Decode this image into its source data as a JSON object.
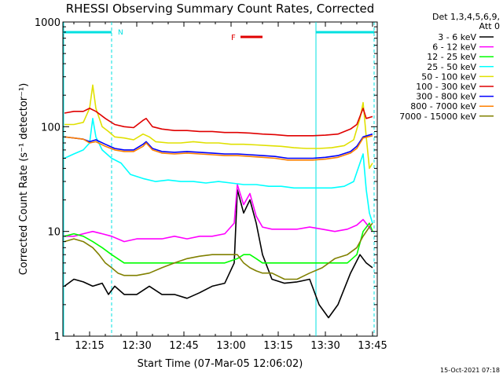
{
  "chart_data": {
    "type": "line",
    "title": "RHESSI Observing Summary Count Rates, Corrected",
    "xlabel": "Start Time (07-Mar-05 12:06:02)",
    "ylabel": "Corrected Count Rate (s⁻¹ detector⁻¹)",
    "yscale": "log",
    "ylim": [
      1,
      1000
    ],
    "xlim_minutes": [
      726.5,
      826.5
    ],
    "x_ticks": [
      "12:15",
      "12:30",
      "12:45",
      "13:00",
      "13:15",
      "13:30",
      "13:45"
    ],
    "x_tick_minutes": [
      735,
      750,
      765,
      780,
      795,
      810,
      825
    ],
    "y_ticks": [
      "1",
      "10",
      "100",
      "1000"
    ],
    "y_tick_values": [
      1,
      10,
      100,
      1000
    ],
    "legend_position": "right",
    "legend_header": [
      "Det 1,3,4,5,6,9,",
      "Att 0"
    ],
    "flare_flag": {
      "label": "F",
      "color": "#e00000",
      "start_min": 783,
      "end_min": 790
    },
    "night_flag": {
      "label": "N",
      "color": "#00e0e0"
    },
    "night_intervals": [
      [
        726.5,
        742
      ],
      [
        807,
        825.5
      ]
    ],
    "boundaries_min": [
      742,
      807,
      825.5
    ],
    "timestamp": "15-Oct-2021 07:18",
    "series": [
      {
        "name": "3 - 6 keV",
        "color": "#000000",
        "points": [
          [
            727,
            3
          ],
          [
            730,
            3.5
          ],
          [
            733,
            3.3
          ],
          [
            736,
            3
          ],
          [
            739,
            3.2
          ],
          [
            741,
            2.5
          ],
          [
            743,
            3
          ],
          [
            746,
            2.5
          ],
          [
            750,
            2.5
          ],
          [
            754,
            3
          ],
          [
            758,
            2.5
          ],
          [
            762,
            2.5
          ],
          [
            766,
            2.3
          ],
          [
            770,
            2.6
          ],
          [
            774,
            3
          ],
          [
            778,
            3.2
          ],
          [
            781,
            5
          ],
          [
            782,
            25
          ],
          [
            784,
            15
          ],
          [
            786,
            20
          ],
          [
            788,
            12
          ],
          [
            790,
            6
          ],
          [
            793,
            3.5
          ],
          [
            797,
            3.2
          ],
          [
            801,
            3.3
          ],
          [
            805,
            3.5
          ],
          [
            808,
            2
          ],
          [
            811,
            1.5
          ],
          [
            814,
            2
          ],
          [
            818,
            4
          ],
          [
            821,
            6
          ],
          [
            823,
            5
          ],
          [
            825,
            4.5
          ]
        ]
      },
      {
        "name": "6 - 12 keV",
        "color": "#ff00ff",
        "points": [
          [
            727,
            9
          ],
          [
            730,
            9
          ],
          [
            733,
            9.5
          ],
          [
            736,
            10
          ],
          [
            739,
            9.5
          ],
          [
            742,
            9
          ],
          [
            746,
            8
          ],
          [
            750,
            8.5
          ],
          [
            754,
            8.5
          ],
          [
            758,
            8.5
          ],
          [
            762,
            9
          ],
          [
            766,
            8.5
          ],
          [
            770,
            9
          ],
          [
            774,
            9
          ],
          [
            778,
            9.5
          ],
          [
            781,
            12
          ],
          [
            782,
            28
          ],
          [
            784,
            18
          ],
          [
            786,
            23
          ],
          [
            788,
            14
          ],
          [
            790,
            11
          ],
          [
            793,
            10.5
          ],
          [
            797,
            10.5
          ],
          [
            801,
            10.5
          ],
          [
            805,
            11
          ],
          [
            809,
            10.5
          ],
          [
            813,
            10
          ],
          [
            817,
            10.5
          ],
          [
            820,
            11.5
          ],
          [
            822,
            13
          ],
          [
            825,
            10
          ]
        ]
      },
      {
        "name": "12 - 25 keV",
        "color": "#00ff00",
        "points": [
          [
            727,
            9
          ],
          [
            730,
            9.5
          ],
          [
            733,
            9
          ],
          [
            736,
            8
          ],
          [
            739,
            7
          ],
          [
            742,
            6
          ],
          [
            746,
            5
          ],
          [
            750,
            5
          ],
          [
            754,
            5
          ],
          [
            758,
            5
          ],
          [
            762,
            5
          ],
          [
            766,
            5
          ],
          [
            770,
            5
          ],
          [
            774,
            5
          ],
          [
            778,
            5
          ],
          [
            782,
            5.5
          ],
          [
            784,
            6
          ],
          [
            786,
            6
          ],
          [
            788,
            5.5
          ],
          [
            790,
            5
          ],
          [
            793,
            5
          ],
          [
            797,
            5
          ],
          [
            801,
            5
          ],
          [
            805,
            5
          ],
          [
            809,
            5
          ],
          [
            813,
            5
          ],
          [
            817,
            5
          ],
          [
            820,
            6
          ],
          [
            822,
            10
          ],
          [
            824,
            12
          ],
          [
            825,
            10
          ]
        ]
      },
      {
        "name": "25 - 50 keV",
        "color": "#00ffff",
        "points": [
          [
            727,
            50
          ],
          [
            730,
            55
          ],
          [
            733,
            60
          ],
          [
            735,
            70
          ],
          [
            736,
            120
          ],
          [
            737,
            80
          ],
          [
            739,
            60
          ],
          [
            742,
            50
          ],
          [
            745,
            45
          ],
          [
            748,
            35
          ],
          [
            752,
            32
          ],
          [
            756,
            30
          ],
          [
            760,
            31
          ],
          [
            764,
            30
          ],
          [
            768,
            30
          ],
          [
            772,
            29
          ],
          [
            776,
            30
          ],
          [
            780,
            29
          ],
          [
            784,
            28
          ],
          [
            788,
            28
          ],
          [
            792,
            27
          ],
          [
            796,
            27
          ],
          [
            800,
            26
          ],
          [
            804,
            26
          ],
          [
            808,
            26
          ],
          [
            812,
            26
          ],
          [
            816,
            27
          ],
          [
            819,
            30
          ],
          [
            821,
            45
          ],
          [
            822,
            55
          ],
          [
            823,
            25
          ],
          [
            824,
            15
          ],
          [
            825,
            12
          ]
        ]
      },
      {
        "name": "50 - 100 keV",
        "color": "#e0e000",
        "points": [
          [
            727,
            105
          ],
          [
            730,
            105
          ],
          [
            733,
            110
          ],
          [
            735,
            150
          ],
          [
            736,
            250
          ],
          [
            737,
            150
          ],
          [
            739,
            100
          ],
          [
            741,
            90
          ],
          [
            743,
            80
          ],
          [
            746,
            78
          ],
          [
            749,
            75
          ],
          [
            752,
            85
          ],
          [
            754,
            80
          ],
          [
            756,
            72
          ],
          [
            760,
            70
          ],
          [
            764,
            70
          ],
          [
            768,
            72
          ],
          [
            772,
            70
          ],
          [
            776,
            70
          ],
          [
            780,
            68
          ],
          [
            784,
            68
          ],
          [
            788,
            67
          ],
          [
            792,
            66
          ],
          [
            796,
            65
          ],
          [
            800,
            63
          ],
          [
            804,
            62
          ],
          [
            808,
            62
          ],
          [
            812,
            63
          ],
          [
            816,
            66
          ],
          [
            819,
            75
          ],
          [
            821,
            120
          ],
          [
            822,
            170
          ],
          [
            823,
            80
          ],
          [
            824,
            40
          ],
          [
            825,
            45
          ]
        ]
      },
      {
        "name": "100 - 300 keV",
        "color": "#e00000",
        "points": [
          [
            727,
            135
          ],
          [
            730,
            140
          ],
          [
            733,
            140
          ],
          [
            735,
            150
          ],
          [
            737,
            140
          ],
          [
            740,
            120
          ],
          [
            743,
            105
          ],
          [
            746,
            100
          ],
          [
            749,
            98
          ],
          [
            752,
            115
          ],
          [
            753,
            120
          ],
          [
            755,
            100
          ],
          [
            758,
            95
          ],
          [
            762,
            92
          ],
          [
            766,
            92
          ],
          [
            770,
            90
          ],
          [
            774,
            90
          ],
          [
            778,
            88
          ],
          [
            782,
            88
          ],
          [
            786,
            87
          ],
          [
            790,
            85
          ],
          [
            794,
            84
          ],
          [
            798,
            82
          ],
          [
            802,
            82
          ],
          [
            806,
            82
          ],
          [
            810,
            83
          ],
          [
            814,
            85
          ],
          [
            818,
            95
          ],
          [
            820,
            105
          ],
          [
            822,
            150
          ],
          [
            823,
            120
          ],
          [
            825,
            125
          ]
        ]
      },
      {
        "name": "300 - 800 keV",
        "color": "#0000ff",
        "points": [
          [
            727,
            80
          ],
          [
            730,
            78
          ],
          [
            733,
            76
          ],
          [
            735,
            72
          ],
          [
            737,
            75
          ],
          [
            740,
            68
          ],
          [
            743,
            62
          ],
          [
            746,
            60
          ],
          [
            749,
            60
          ],
          [
            752,
            68
          ],
          [
            753,
            72
          ],
          [
            755,
            62
          ],
          [
            758,
            58
          ],
          [
            762,
            57
          ],
          [
            766,
            58
          ],
          [
            770,
            57
          ],
          [
            774,
            56
          ],
          [
            778,
            55
          ],
          [
            782,
            55
          ],
          [
            786,
            54
          ],
          [
            790,
            53
          ],
          [
            794,
            52
          ],
          [
            798,
            50
          ],
          [
            802,
            50
          ],
          [
            806,
            50
          ],
          [
            810,
            51
          ],
          [
            814,
            53
          ],
          [
            818,
            58
          ],
          [
            820,
            65
          ],
          [
            822,
            80
          ],
          [
            825,
            85
          ]
        ]
      },
      {
        "name": "800 - 7000 keV",
        "color": "#ff8000",
        "points": [
          [
            727,
            80
          ],
          [
            730,
            78
          ],
          [
            733,
            76
          ],
          [
            735,
            70
          ],
          [
            737,
            72
          ],
          [
            740,
            65
          ],
          [
            743,
            60
          ],
          [
            746,
            58
          ],
          [
            749,
            58
          ],
          [
            752,
            65
          ],
          [
            753,
            70
          ],
          [
            755,
            60
          ],
          [
            758,
            56
          ],
          [
            762,
            55
          ],
          [
            766,
            56
          ],
          [
            770,
            55
          ],
          [
            774,
            54
          ],
          [
            778,
            53
          ],
          [
            782,
            53
          ],
          [
            786,
            52
          ],
          [
            790,
            51
          ],
          [
            794,
            50
          ],
          [
            798,
            48
          ],
          [
            802,
            48
          ],
          [
            806,
            48
          ],
          [
            810,
            49
          ],
          [
            814,
            51
          ],
          [
            818,
            56
          ],
          [
            820,
            62
          ],
          [
            822,
            78
          ],
          [
            825,
            82
          ]
        ]
      },
      {
        "name": "7000 - 15000 keV",
        "color": "#808000",
        "points": [
          [
            727,
            8
          ],
          [
            730,
            8.5
          ],
          [
            733,
            8
          ],
          [
            736,
            7
          ],
          [
            738,
            6
          ],
          [
            740,
            5
          ],
          [
            742,
            4.5
          ],
          [
            744,
            4
          ],
          [
            746,
            3.8
          ],
          [
            750,
            3.8
          ],
          [
            754,
            4
          ],
          [
            758,
            4.5
          ],
          [
            762,
            5
          ],
          [
            766,
            5.5
          ],
          [
            770,
            5.8
          ],
          [
            774,
            6
          ],
          [
            778,
            6
          ],
          [
            782,
            6
          ],
          [
            784,
            5
          ],
          [
            786,
            4.5
          ],
          [
            788,
            4.2
          ],
          [
            790,
            4
          ],
          [
            793,
            4
          ],
          [
            797,
            3.5
          ],
          [
            801,
            3.5
          ],
          [
            805,
            4
          ],
          [
            809,
            4.5
          ],
          [
            813,
            5.5
          ],
          [
            817,
            6
          ],
          [
            820,
            7
          ],
          [
            822,
            9
          ],
          [
            824,
            11
          ],
          [
            825,
            12
          ]
        ]
      }
    ]
  }
}
